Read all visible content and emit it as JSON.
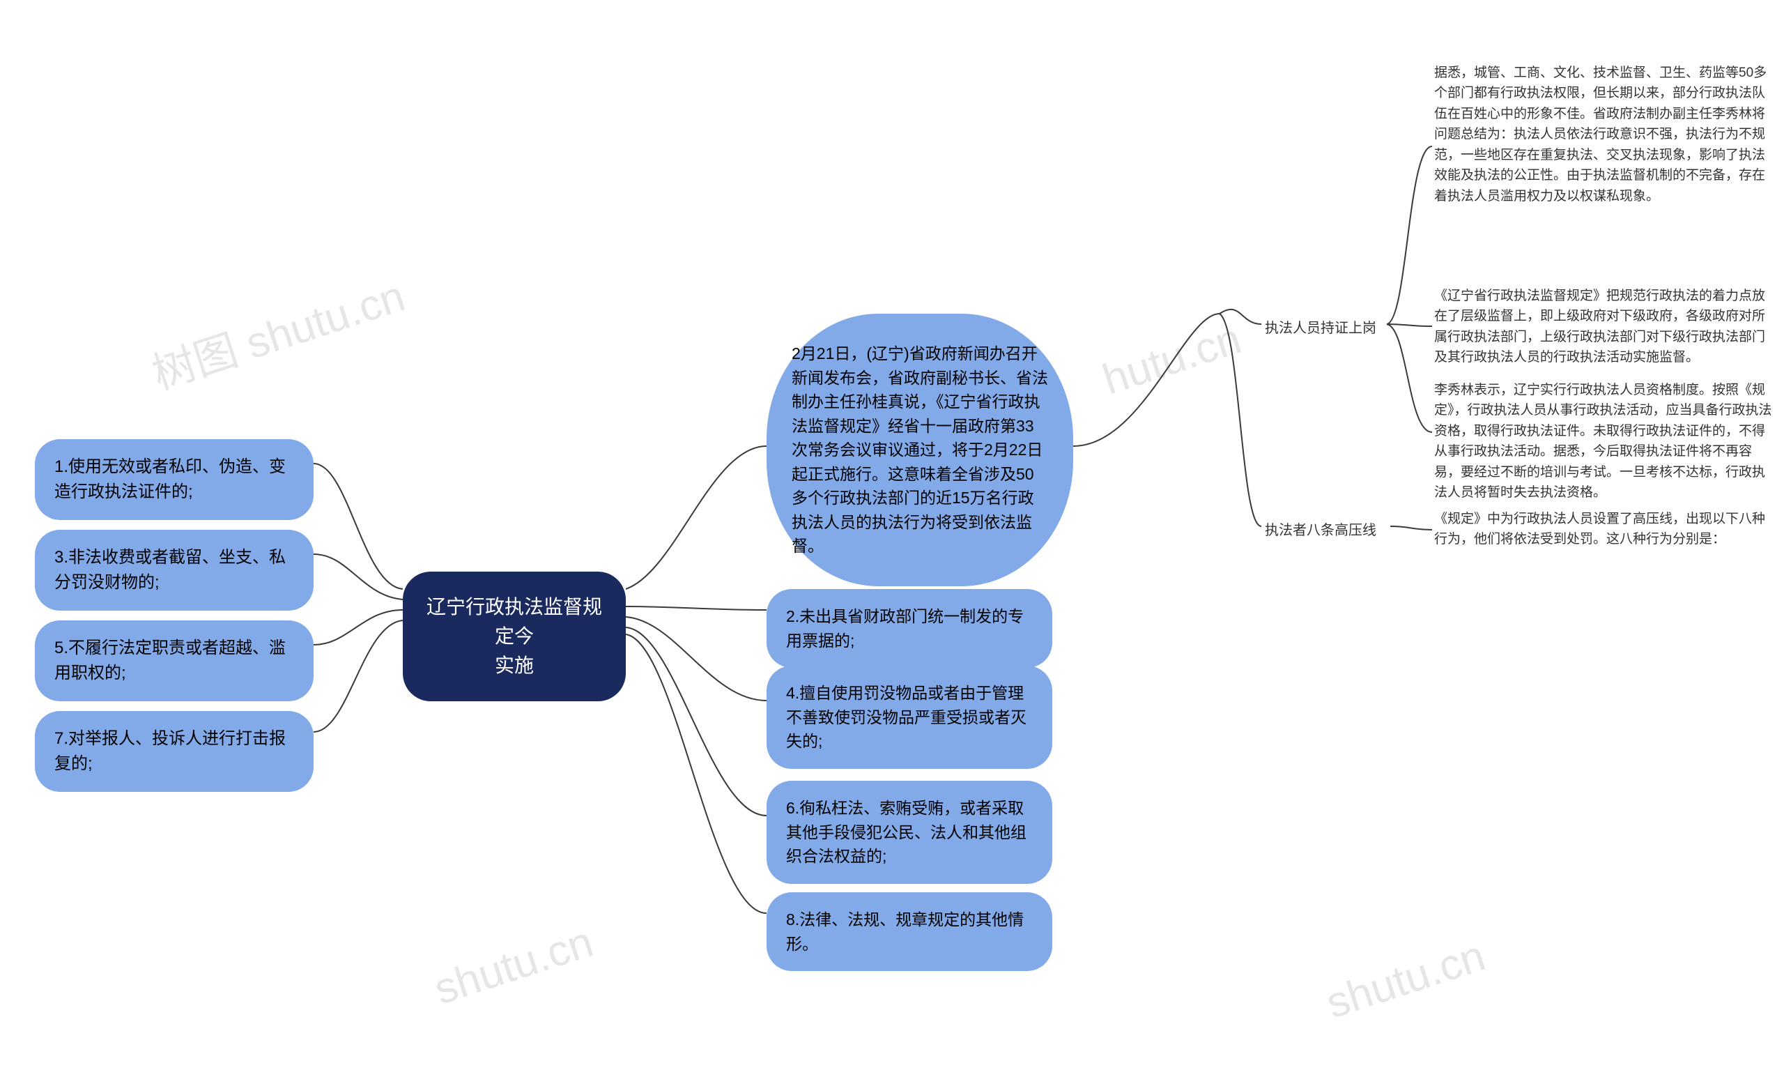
{
  "diagram": {
    "type": "mindmap",
    "root": {
      "text": "辽宁行政执法监督规定今\n实施",
      "bg_color": "#1b2a5e",
      "text_color": "#ffffff",
      "fontsize": 28
    },
    "top_right_intro": "2月21日，(辽宁)省政府新闻办召开新闻发布会，省政府副秘书长、省法制办主任孙桂真说，《辽宁省行政执法监督规定》经省十一届政府第33次常务会议审议通过，将于2月22日起正式施行。这意味着全省涉及50多个行政执法部门的近15万名行政执法人员的执法行为将受到依法监督。",
    "left_nodes": [
      "1.使用无效或者私印、伪造、变造行政执法证件的;",
      "3.非法收费或者截留、坐支、私分罚没财物的;",
      "5.不履行法定职责或者超越、滥用职权的;",
      "7.对举报人、投诉人进行打击报复的;"
    ],
    "right_nodes": [
      "2.未出具省财政部门统一制发的专用票据的;",
      "4.擅自使用罚没物品或者由于管理不善致使罚没物品严重受损或者灭失的;",
      "6.徇私枉法、索贿受贿，或者采取其他手段侵犯公民、法人和其他组织合法权益的;",
      "8.法律、法规、规章规定的其他情形。"
    ],
    "right_sub": {
      "label1": "执法人员持证上岗",
      "details1": [
        "据悉，城管、工商、文化、技术监督、卫生、药监等50多个部门都有行政执法权限，但长期以来，部分行政执法队伍在百姓心中的形象不佳。省政府法制办副主任李秀林将问题总结为：执法人员依法行政意识不强，执法行为不规范，一些地区存在重复执法、交叉执法现象，影响了执法效能及执法的公正性。由于执法监督机制的不完备，存在着执法人员滥用权力及以权谋私现象。",
        "《辽宁省行政执法监督规定》把规范行政执法的着力点放在了层级监督上，即上级政府对下级政府，各级政府对所属行政执法部门，上级行政执法部门对下级行政执法部门及其行政执法人员的行政执法活动实施监督。",
        "李秀林表示，辽宁实行行政执法人员资格制度。按照《规定》，行政执法人员从事行政执法活动，应当具备行政执法资格，取得行政执法证件。未取得行政执法证件的，不得从事行政执法活动。据悉，今后取得执法证件将不再容易，要经过不断的培训与考试。一旦考核不达标，行政执法人员将暂时失去执法资格。"
      ],
      "label2": "执法者八条高压线",
      "details2": "《规定》中为行政执法人员设置了高压线，出现以下八种行为，他们将依法受到处罚。这八种行为分别是："
    },
    "node_style": {
      "bg_color": "#82a9e8",
      "text_color": "#000000",
      "fontsize": 24,
      "border_radius": 36
    },
    "edge_color": "#3a3a3a",
    "background_color": "#ffffff",
    "watermarks": [
      "树图 shutu.cn",
      "shutu.cn",
      "shutu.cn",
      "hutu.cn"
    ]
  }
}
